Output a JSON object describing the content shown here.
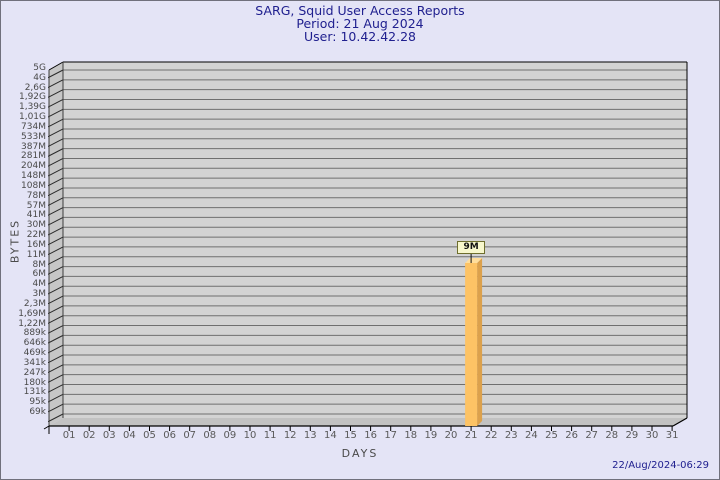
{
  "header": {
    "title": "SARG, Squid User Access Reports",
    "period": "Period: 21 Aug 2024",
    "user": "User: 10.42.42.28"
  },
  "footer": {
    "timestamp": "22/Aug/2024-06:29"
  },
  "chart_data": {
    "type": "bar",
    "title": "SARG, Squid User Access Reports",
    "subtitle": [
      "Period: 21 Aug 2024",
      "User: 10.42.42.28"
    ],
    "xlabel": "DAYS",
    "ylabel": "BYTES",
    "y_scale": "log",
    "grid": true,
    "legend": null,
    "y_tick_labels": [
      "5G",
      "4G",
      "2,6G",
      "1,92G",
      "1,39G",
      "1,01G",
      "734M",
      "533M",
      "387M",
      "281M",
      "204M",
      "148M",
      "108M",
      "78M",
      "57M",
      "41M",
      "30M",
      "22M",
      "16M",
      "11M",
      "8M",
      "6M",
      "4M",
      "3M",
      "2,3M",
      "1,69M",
      "1,22M",
      "889k",
      "646k",
      "469k",
      "341k",
      "247k",
      "180k",
      "131k",
      "95k",
      "69k"
    ],
    "categories": [
      "01",
      "02",
      "03",
      "04",
      "05",
      "06",
      "07",
      "08",
      "09",
      "10",
      "11",
      "12",
      "13",
      "14",
      "15",
      "16",
      "17",
      "18",
      "19",
      "20",
      "21",
      "22",
      "23",
      "24",
      "25",
      "26",
      "27",
      "28",
      "29",
      "30",
      "31"
    ],
    "values": [
      0,
      0,
      0,
      0,
      0,
      0,
      0,
      0,
      0,
      0,
      0,
      0,
      0,
      0,
      0,
      0,
      0,
      0,
      0,
      0,
      9000000,
      0,
      0,
      0,
      0,
      0,
      0,
      0,
      0,
      0,
      0
    ],
    "bar_label": "9M",
    "highlighted_day": "21"
  },
  "colors": {
    "bg": "#E4E4F6",
    "page-border": "#70707C",
    "navy": "#20208F",
    "panel": "#D3D3D3",
    "grid": "#6F6F6F",
    "wall": "#C6C6C6",
    "floor": "#C2C2C2",
    "edge": "#000000",
    "bar-front": "#FDC365",
    "bar-side": "#DCA14C",
    "bar-top": "#FFDE9C",
    "box-bg": "#F7F7CC",
    "box-border": "#6E6E2E",
    "ytext": "#4A4A4A",
    "xtext": "#5A5A5A",
    "axis-title": "#4A4A4A"
  }
}
